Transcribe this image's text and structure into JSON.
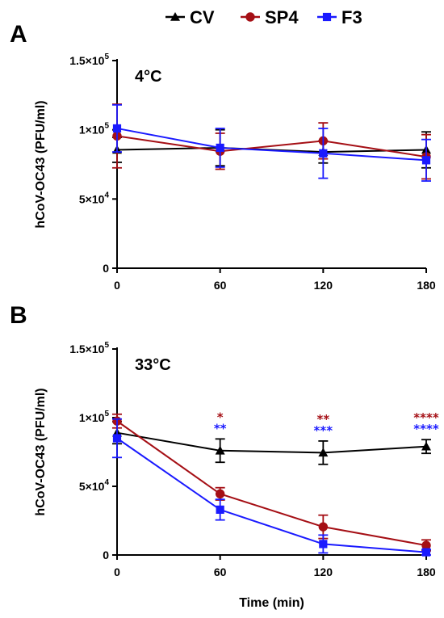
{
  "legend": [
    {
      "name": "CV",
      "color": "#000000",
      "marker": "triangle-icon"
    },
    {
      "name": "SP4",
      "color": "#a50f15",
      "marker": "circle-icon"
    },
    {
      "name": "F3",
      "color": "#1a1aff",
      "marker": "square-icon"
    }
  ],
  "chart_data": [
    {
      "type": "line",
      "panel": "A",
      "annotation": "4°C",
      "x": [
        0,
        60,
        120,
        180
      ],
      "xticks": [
        "0",
        "60",
        "120",
        "180"
      ],
      "xlabel": "",
      "ylabel": "hCoV-OC43 (PFU/ml)",
      "ylim": [
        0,
        150000
      ],
      "yticks": [
        {
          "value": 0,
          "mant": "0",
          "exp": ""
        },
        {
          "value": 50000,
          "mant": "5×10",
          "exp": "4"
        },
        {
          "value": 100000,
          "mant": "1×10",
          "exp": "5"
        },
        {
          "value": 150000,
          "mant": "1.5×10",
          "exp": "5"
        }
      ],
      "grid": false,
      "series": [
        {
          "name": "CV",
          "color": "#000000",
          "marker": "triangle",
          "values": [
            85500,
            87000,
            84000,
            85500
          ],
          "errors": [
            9000,
            13000,
            8000,
            13000
          ]
        },
        {
          "name": "SP4",
          "color": "#a50f15",
          "marker": "circle",
          "values": [
            95500,
            84500,
            92000,
            80500
          ],
          "errors": [
            23000,
            13000,
            13000,
            16000
          ]
        },
        {
          "name": "F3",
          "color": "#1a1aff",
          "marker": "square",
          "values": [
            101000,
            87000,
            83000,
            78000
          ],
          "errors": [
            17000,
            14000,
            18000,
            15000
          ]
        }
      ],
      "significance": []
    },
    {
      "type": "line",
      "panel": "B",
      "annotation": "33°C",
      "x": [
        0,
        60,
        120,
        180
      ],
      "xticks": [
        "0",
        "60",
        "120",
        "180"
      ],
      "xlabel": "Time (min)",
      "ylabel": "hCoV-OC43 (PFU/ml)",
      "ylim": [
        0,
        150000
      ],
      "yticks": [
        {
          "value": 0,
          "mant": "0",
          "exp": ""
        },
        {
          "value": 50000,
          "mant": "5×10",
          "exp": "4"
        },
        {
          "value": 100000,
          "mant": "1×10",
          "exp": "5"
        },
        {
          "value": 150000,
          "mant": "1.5×10",
          "exp": "5"
        }
      ],
      "grid": false,
      "series": [
        {
          "name": "CV",
          "color": "#000000",
          "marker": "triangle",
          "values": [
            89000,
            76000,
            74500,
            79000
          ],
          "errors": [
            8000,
            8500,
            8500,
            5000
          ]
        },
        {
          "name": "SP4",
          "color": "#a50f15",
          "marker": "circle",
          "values": [
            97500,
            44500,
            20500,
            7000
          ],
          "errors": [
            5000,
            4500,
            8500,
            4000
          ]
        },
        {
          "name": "F3",
          "color": "#1a1aff",
          "marker": "square",
          "values": [
            85000,
            33000,
            8000,
            2000
          ],
          "errors": [
            14000,
            7500,
            6500,
            2000
          ]
        }
      ],
      "significance": [
        {
          "x": 60,
          "series": "SP4",
          "text": "*",
          "color": "#a50f15"
        },
        {
          "x": 60,
          "series": "F3",
          "text": "**",
          "color": "#1a1aff"
        },
        {
          "x": 120,
          "series": "SP4",
          "text": "**",
          "color": "#a50f15"
        },
        {
          "x": 120,
          "series": "F3",
          "text": "***",
          "color": "#1a1aff"
        },
        {
          "x": 180,
          "series": "SP4",
          "text": "****",
          "color": "#a50f15"
        },
        {
          "x": 180,
          "series": "F3",
          "text": "****",
          "color": "#1a1aff"
        }
      ]
    }
  ]
}
